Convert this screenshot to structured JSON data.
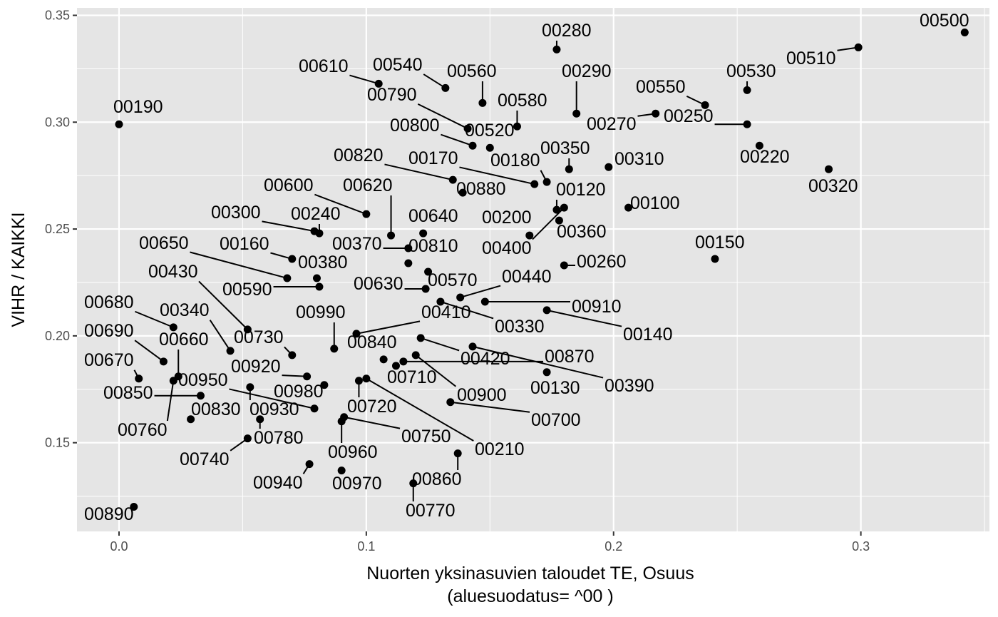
{
  "chart_data": {
    "type": "scatter",
    "xlabel": "Nuorten yksinasuvien taloudet TE, Osuus",
    "xlabel_sub": "(aluesuodatus= ^00 )",
    "ylabel": "VIHR / KAIKKI",
    "xlim": [
      -0.017,
      0.352
    ],
    "ylim": [
      0.1085,
      0.3535
    ],
    "xticks": [
      0.0,
      0.1,
      0.2,
      0.3
    ],
    "xtick_labels": [
      "0.0",
      "0.1",
      "0.2",
      "0.3"
    ],
    "yticks": [
      0.15,
      0.2,
      0.25,
      0.3,
      0.35
    ],
    "ytick_labels": [
      "0.15",
      "0.20",
      "0.25",
      "0.30",
      "0.35"
    ],
    "grid": true,
    "colors": {
      "panel": "#e5e5e5",
      "grid": "#ffffff",
      "point": "#000000",
      "tick_text": "#4d4d4d"
    },
    "points": [
      {
        "label": "00100",
        "x": 0.206,
        "y": 0.26
      },
      {
        "label": "00120",
        "x": 0.177,
        "y": 0.259
      },
      {
        "label": "00130",
        "x": 0.173,
        "y": 0.183
      },
      {
        "label": "00140",
        "x": 0.173,
        "y": 0.212
      },
      {
        "label": "00150",
        "x": 0.241,
        "y": 0.236
      },
      {
        "label": "00160",
        "x": 0.07,
        "y": 0.236
      },
      {
        "label": "00170",
        "x": 0.168,
        "y": 0.271
      },
      {
        "label": "00180",
        "x": 0.173,
        "y": 0.272
      },
      {
        "label": "00190",
        "x": 0.0,
        "y": 0.299
      },
      {
        "label": "00200",
        "x": 0.166,
        "y": 0.247
      },
      {
        "label": "00210",
        "x": 0.1,
        "y": 0.18
      },
      {
        "label": "00220",
        "x": 0.259,
        "y": 0.289
      },
      {
        "label": "00240",
        "x": 0.081,
        "y": 0.248
      },
      {
        "label": "00250",
        "x": 0.254,
        "y": 0.299
      },
      {
        "label": "00260",
        "x": 0.18,
        "y": 0.233
      },
      {
        "label": "00270",
        "x": 0.217,
        "y": 0.304
      },
      {
        "label": "00280",
        "x": 0.177,
        "y": 0.334
      },
      {
        "label": "00290",
        "x": 0.185,
        "y": 0.304
      },
      {
        "label": "00300",
        "x": 0.079,
        "y": 0.249
      },
      {
        "label": "00310",
        "x": 0.198,
        "y": 0.279
      },
      {
        "label": "00320",
        "x": 0.287,
        "y": 0.278
      },
      {
        "label": "00330",
        "x": 0.13,
        "y": 0.216
      },
      {
        "label": "00340",
        "x": 0.045,
        "y": 0.193
      },
      {
        "label": "00350",
        "x": 0.182,
        "y": 0.278
      },
      {
        "label": "00360",
        "x": 0.178,
        "y": 0.254
      },
      {
        "label": "00370",
        "x": 0.117,
        "y": 0.241
      },
      {
        "label": "00380",
        "x": 0.08,
        "y": 0.227
      },
      {
        "label": "00390",
        "x": 0.143,
        "y": 0.195
      },
      {
        "label": "00400",
        "x": 0.18,
        "y": 0.26
      },
      {
        "label": "00410",
        "x": 0.096,
        "y": 0.201
      },
      {
        "label": "00420",
        "x": 0.122,
        "y": 0.199
      },
      {
        "label": "00430",
        "x": 0.052,
        "y": 0.203
      },
      {
        "label": "00440",
        "x": 0.138,
        "y": 0.218
      },
      {
        "label": "00500",
        "x": 0.342,
        "y": 0.342
      },
      {
        "label": "00510",
        "x": 0.299,
        "y": 0.335
      },
      {
        "label": "00520",
        "x": 0.15,
        "y": 0.288
      },
      {
        "label": "00530",
        "x": 0.254,
        "y": 0.315
      },
      {
        "label": "00540",
        "x": 0.132,
        "y": 0.316
      },
      {
        "label": "00550",
        "x": 0.237,
        "y": 0.308
      },
      {
        "label": "00560",
        "x": 0.147,
        "y": 0.309
      },
      {
        "label": "00570",
        "x": 0.125,
        "y": 0.23
      },
      {
        "label": "00580",
        "x": 0.161,
        "y": 0.298
      },
      {
        "label": "00590",
        "x": 0.081,
        "y": 0.223
      },
      {
        "label": "00600",
        "x": 0.1,
        "y": 0.257
      },
      {
        "label": "00610",
        "x": 0.105,
        "y": 0.318
      },
      {
        "label": "00620",
        "x": 0.11,
        "y": 0.247
      },
      {
        "label": "00630",
        "x": 0.124,
        "y": 0.222
      },
      {
        "label": "00640",
        "x": 0.123,
        "y": 0.248
      },
      {
        "label": "00650",
        "x": 0.068,
        "y": 0.227
      },
      {
        "label": "00660",
        "x": 0.024,
        "y": 0.181
      },
      {
        "label": "00670",
        "x": 0.008,
        "y": 0.18
      },
      {
        "label": "00680",
        "x": 0.022,
        "y": 0.204
      },
      {
        "label": "00690",
        "x": 0.018,
        "y": 0.188
      },
      {
        "label": "00700",
        "x": 0.134,
        "y": 0.169
      },
      {
        "label": "00710",
        "x": 0.112,
        "y": 0.186
      },
      {
        "label": "00720",
        "x": 0.097,
        "y": 0.179
      },
      {
        "label": "00730",
        "x": 0.07,
        "y": 0.191
      },
      {
        "label": "00740",
        "x": 0.052,
        "y": 0.152
      },
      {
        "label": "00750",
        "x": 0.091,
        "y": 0.162
      },
      {
        "label": "00760",
        "x": 0.022,
        "y": 0.179
      },
      {
        "label": "00770",
        "x": 0.119,
        "y": 0.131
      },
      {
        "label": "00780",
        "x": 0.057,
        "y": 0.161
      },
      {
        "label": "00790",
        "x": 0.141,
        "y": 0.297
      },
      {
        "label": "00800",
        "x": 0.143,
        "y": 0.289
      },
      {
        "label": "00810",
        "x": 0.117,
        "y": 0.234
      },
      {
        "label": "00820",
        "x": 0.135,
        "y": 0.273
      },
      {
        "label": "00830",
        "x": 0.029,
        "y": 0.161
      },
      {
        "label": "00840",
        "x": 0.107,
        "y": 0.189
      },
      {
        "label": "00850",
        "x": 0.033,
        "y": 0.172
      },
      {
        "label": "00860",
        "x": 0.137,
        "y": 0.145
      },
      {
        "label": "00870",
        "x": 0.115,
        "y": 0.188
      },
      {
        "label": "00880",
        "x": 0.139,
        "y": 0.267
      },
      {
        "label": "00890",
        "x": 0.006,
        "y": 0.12
      },
      {
        "label": "00900",
        "x": 0.12,
        "y": 0.191
      },
      {
        "label": "00910",
        "x": 0.148,
        "y": 0.216
      },
      {
        "label": "00920",
        "x": 0.076,
        "y": 0.181
      },
      {
        "label": "00930",
        "x": 0.053,
        "y": 0.176
      },
      {
        "label": "00940",
        "x": 0.077,
        "y": 0.14
      },
      {
        "label": "00950",
        "x": 0.079,
        "y": 0.166
      },
      {
        "label": "00960",
        "x": 0.09,
        "y": 0.16
      },
      {
        "label": "00970",
        "x": 0.09,
        "y": 0.137
      },
      {
        "label": "00980",
        "x": 0.083,
        "y": 0.177
      },
      {
        "label": "00990",
        "x": 0.087,
        "y": 0.194
      }
    ]
  }
}
